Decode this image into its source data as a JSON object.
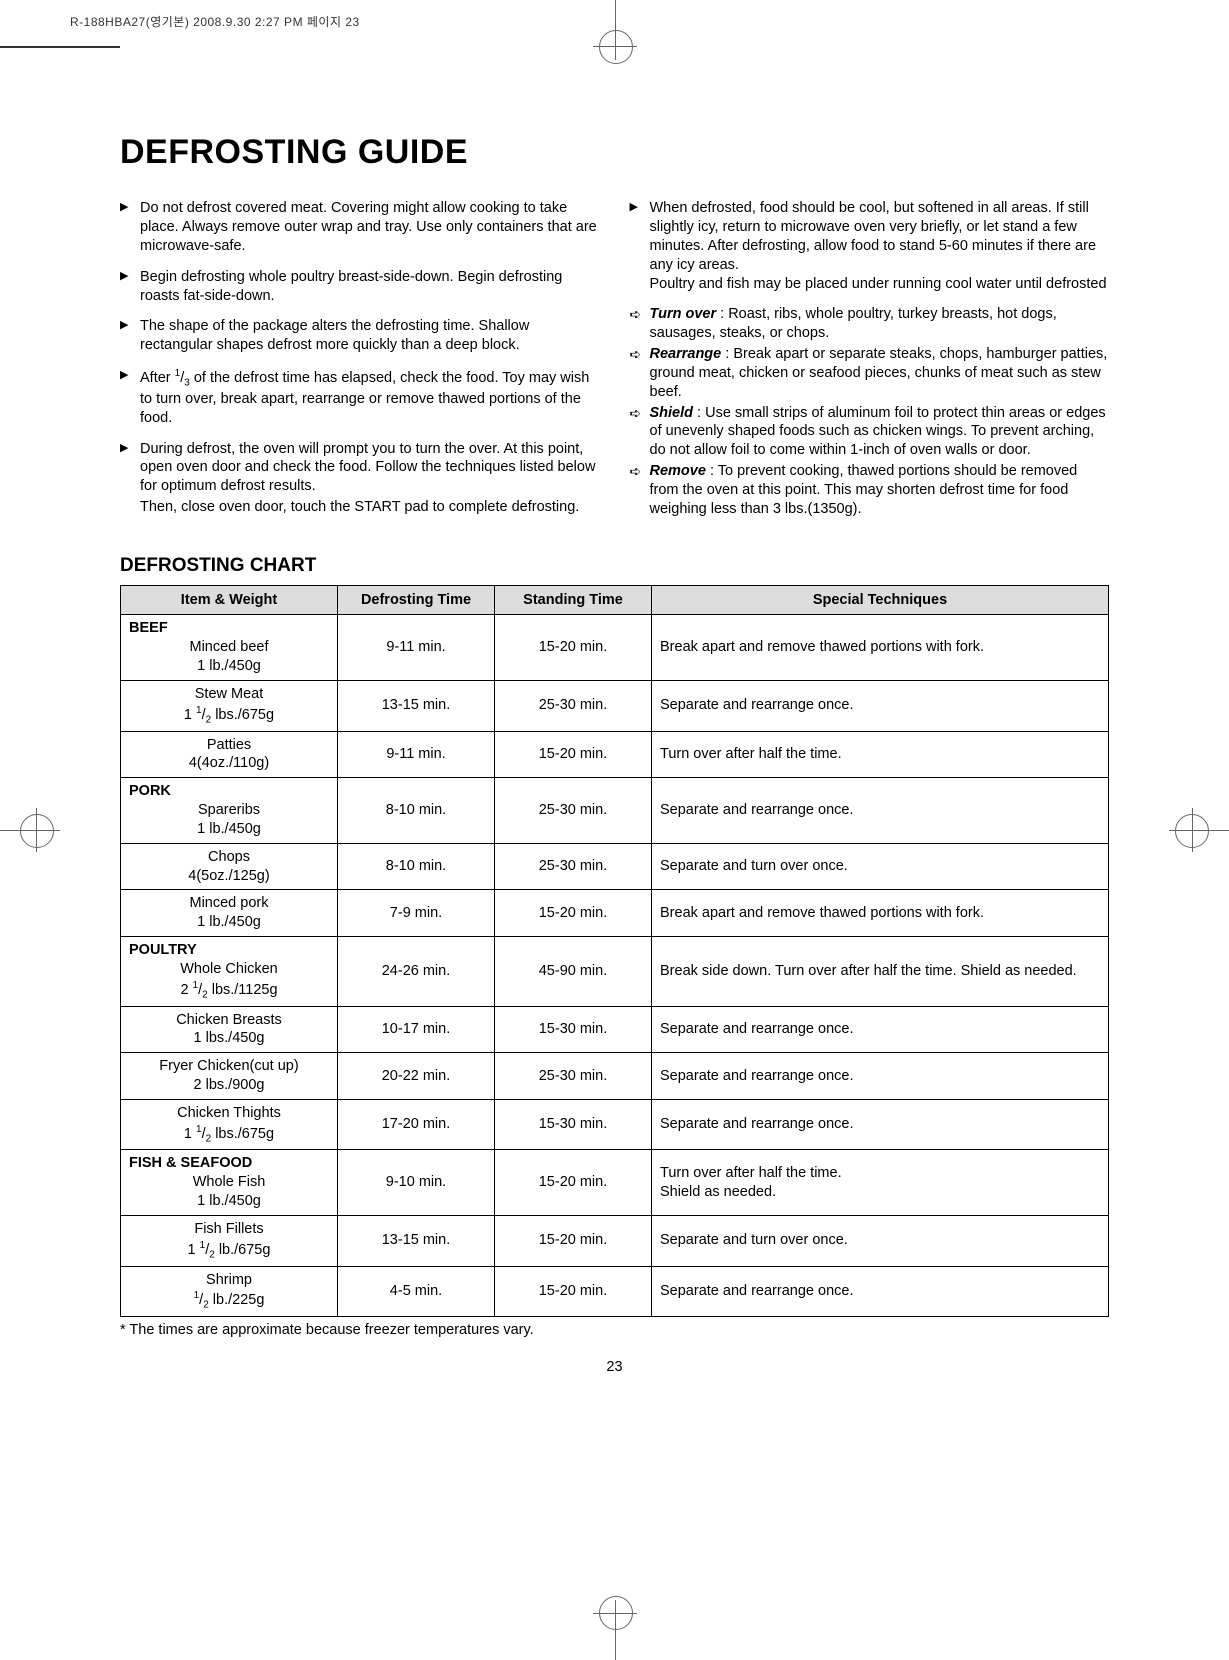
{
  "print_line": "R-188HBA27(영기본)  2008.9.30 2:27 PM  페이지 23",
  "title": "DEFROSTING GUIDE",
  "left_bullets": [
    "Do not defrost covered meat. Covering might allow cooking to take place. Always remove outer wrap and tray. Use only containers that are microwave-safe.",
    "Begin defrosting whole poultry breast-side-down. Begin defrosting roasts fat-side-down.",
    "The shape of the package alters the defrosting time. Shallow rectangular shapes defrost more quickly than a deep block.",
    "After 1/3 of the defrost time has elapsed, check the food. Toy may wish to turn over, break apart, rearrange or remove thawed portions of the food.",
    "During defrost, the oven will prompt you to turn the over. At this point, open oven door and check the food. Follow the techniques listed below for optimum defrost results."
  ],
  "left_extra": "Then, close oven door, touch the START pad to complete defrosting.",
  "right_bullet": "When defrosted, food should be cool, but softened in all areas. If still slightly icy, return to microwave oven very briefly, or let stand a few minutes. After defrosting, allow food to stand 5-60 minutes if there are any icy areas.",
  "right_bullet_extra": "Poultry and fish may be placed under running cool water until defrosted",
  "subpoints": [
    {
      "term": "Turn over",
      "text": " : Roast, ribs, whole poultry, turkey breasts, hot dogs, sausages, steaks, or chops."
    },
    {
      "term": "Rearrange",
      "text": " : Break apart or separate steaks, chops, hamburger patties, ground meat, chicken or seafood pieces, chunks of meat such as stew beef."
    },
    {
      "term": "Shield",
      "text": " : Use small strips of aluminum foil to protect thin areas or edges of unevenly shaped foods such as chicken wings. To prevent arching, do not allow foil to come within 1-inch of oven walls or door."
    },
    {
      "term": "Remove",
      "text": " : To prevent cooking, thawed portions should be removed from the oven at this point. This may shorten defrost time for food weighing less than 3 lbs.(1350g)."
    }
  ],
  "chart_title": "DEFROSTING CHART",
  "headers": [
    "Item & Weight",
    "Defrosting Time",
    "Standing Time",
    "Special Techniques"
  ],
  "rows": [
    {
      "cat": "BEEF",
      "item": "Minced beef",
      "wt": "1 lb./450g",
      "defrost": "9-11 min.",
      "stand": "15-20 min.",
      "tech": "Break apart and remove thawed portions with fork."
    },
    {
      "cat": "",
      "item": "Stew Meat",
      "wt_html": "1 <span class='sup'>1</span>/<span class='sub'>2</span> lbs./675g",
      "defrost": "13-15 min.",
      "stand": "25-30 min.",
      "tech": "Separate and rearrange once."
    },
    {
      "cat": "",
      "item": "Patties",
      "wt": "4(4oz./110g)",
      "defrost": "9-11 min.",
      "stand": "15-20 min.",
      "tech": "Turn over after half the time."
    },
    {
      "cat": "PORK",
      "item": "Spareribs",
      "wt": "1 lb./450g",
      "defrost": "8-10 min.",
      "stand": "25-30 min.",
      "tech": "Separate and rearrange once."
    },
    {
      "cat": "",
      "item": "Chops",
      "wt": "4(5oz./125g)",
      "defrost": "8-10 min.",
      "stand": "25-30 min.",
      "tech": "Separate and turn over once."
    },
    {
      "cat": "",
      "item": "Minced pork",
      "wt": "1 lb./450g",
      "defrost": "7-9 min.",
      "stand": "15-20 min.",
      "tech": "Break apart and remove thawed portions with fork."
    },
    {
      "cat": "POULTRY",
      "item": "Whole Chicken",
      "wt_html": "2 <span class='sup'>1</span>/<span class='sub'>2</span> lbs./1125g",
      "defrost": "24-26 min.",
      "stand": "45-90 min.",
      "tech": "Break side down. Turn over after half the time. Shield as needed."
    },
    {
      "cat": "",
      "item": "Chicken Breasts",
      "wt": "1 lbs./450g",
      "defrost": "10-17 min.",
      "stand": "15-30 min.",
      "tech": "Separate and rearrange once."
    },
    {
      "cat": "",
      "item": "Fryer Chicken(cut up)",
      "wt": "2 lbs./900g",
      "defrost": "20-22 min.",
      "stand": "25-30 min.",
      "tech": "Separate and rearrange once."
    },
    {
      "cat": "",
      "item": "Chicken Thights",
      "wt_html": "1 <span class='sup'>1</span>/<span class='sub'>2</span> lbs./675g",
      "defrost": "17-20 min.",
      "stand": "15-30 min.",
      "tech": "Separate and rearrange once."
    },
    {
      "cat": "FISH & SEAFOOD",
      "item": "Whole Fish",
      "wt": "1 lb./450g",
      "defrost": "9-10 min.",
      "stand": "15-20 min.",
      "tech": "Turn over after half the time.\nShield as needed."
    },
    {
      "cat": "",
      "item": "Fish Fillets",
      "wt_html": "1 <span class='sup'>1</span>/<span class='sub'>2</span> lb./675g",
      "defrost": "13-15 min.",
      "stand": "15-20 min.",
      "tech": "Separate and turn over once."
    },
    {
      "cat": "",
      "item": "Shrimp",
      "wt_html": "<span class='sup'>1</span>/<span class='sub'>2</span> lb./225g",
      "defrost": "4-5 min.",
      "stand": "15-20 min.",
      "tech": "Separate and rearrange once."
    }
  ],
  "footnote": "* The times are approximate because freezer temperatures vary.",
  "pagenum": "23",
  "colors": {
    "header_bg": "#dddddd",
    "text": "#000000",
    "border": "#000000"
  }
}
